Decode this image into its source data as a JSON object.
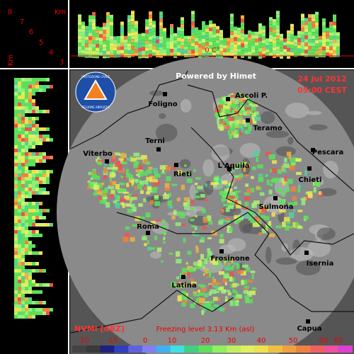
{
  "header": {
    "credit": "Powered by Himet",
    "date": "24 Jul 2012",
    "time": "05:00 CEST"
  },
  "logo": {
    "lines": [
      "PROTEZIONE CIVILE",
      "REGIONE ABRUZZO"
    ]
  },
  "height_axis": {
    "unit": "Km",
    "unit_vertical": "Km",
    "labels": [
      "8",
      "7",
      "6",
      "5",
      "4",
      "3"
    ]
  },
  "freezing_mark": "0 C°",
  "cities": [
    "Ascoli P.",
    "Foligno",
    "Teramo",
    "Terni",
    "Pescara",
    "Viterbo",
    "L'Aquila",
    "Rieti",
    "Chieti",
    "Sulmona",
    "Roma",
    "Frosinone",
    "Isernia",
    "Latina",
    "Capua"
  ],
  "legend": {
    "title": "NVMI [dBZ]",
    "freezing_level": "Freezing level  3.13 Km (asl)",
    "ticks": [
      -20,
      -10,
      0,
      10,
      20,
      30,
      40,
      50,
      60,
      65
    ]
  }
}
